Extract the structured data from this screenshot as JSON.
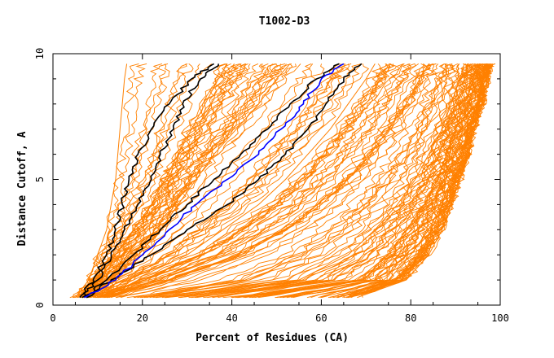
{
  "chart_data": {
    "type": "line",
    "title": "T1002-D3",
    "xlabel": "Percent of Residues (CA)",
    "ylabel": "Distance Cutoff, A",
    "xlim": [
      0,
      100
    ],
    "ylim": [
      0,
      10
    ],
    "x_ticks": [
      "0",
      "20",
      "40",
      "60",
      "80",
      "100"
    ],
    "y_ticks": [
      "0",
      "5",
      "10"
    ],
    "colors": {
      "bundle": "#ff8000",
      "highlight_black": "#000000",
      "highlight_blue": "#0000ff",
      "axes": "#000000"
    },
    "y_levels": [
      0.3,
      1,
      2,
      3,
      4,
      5,
      6,
      7,
      8,
      9,
      9.6
    ],
    "bundle_note_count_estimate": 150,
    "representative_series": [
      {
        "color": "orange",
        "x": [
          5,
          8,
          10,
          12,
          13,
          14,
          14.5,
          15,
          15.5,
          16,
          16.5
        ]
      },
      {
        "color": "orange",
        "x": [
          6,
          10,
          14,
          18,
          22,
          25,
          28,
          31,
          34,
          37,
          39
        ]
      },
      {
        "color": "orange",
        "x": [
          8,
          13,
          19,
          24,
          28,
          32,
          36,
          41,
          46,
          50,
          53
        ]
      },
      {
        "color": "orange",
        "x": [
          10,
          18,
          30,
          38,
          46,
          52,
          57,
          62,
          66,
          70,
          72
        ]
      },
      {
        "color": "orange",
        "x": [
          12,
          26,
          42,
          52,
          60,
          66,
          71,
          75,
          79,
          82,
          84
        ]
      },
      {
        "color": "orange",
        "x": [
          25,
          55,
          66,
          72,
          77,
          81,
          84,
          87,
          89,
          91,
          92
        ]
      },
      {
        "color": "orange",
        "x": [
          40,
          68,
          75,
          79,
          83,
          86,
          88,
          90,
          92,
          94,
          95
        ]
      },
      {
        "color": "orange",
        "x": [
          60,
          75,
          80,
          84,
          87,
          89,
          91,
          93,
          95,
          96,
          97
        ]
      },
      {
        "color": "orange",
        "x": [
          68,
          79,
          84,
          87,
          89,
          91,
          93,
          94,
          96,
          97,
          98
        ]
      }
    ],
    "highlight_series": [
      {
        "color": "black",
        "x": [
          6,
          9,
          12,
          14,
          15.5,
          17,
          19,
          22,
          26,
          31,
          36
        ]
      },
      {
        "color": "black",
        "x": [
          6.5,
          10,
          13,
          16,
          19,
          22,
          24,
          27,
          29,
          33,
          37
        ]
      },
      {
        "color": "black",
        "x": [
          7,
          12,
          18,
          24,
          30,
          36,
          42,
          48,
          53,
          59,
          64
        ]
      },
      {
        "color": "black",
        "x": [
          7.5,
          13,
          22,
          30,
          39,
          46,
          52,
          57,
          61,
          65,
          69
        ]
      },
      {
        "color": "blue",
        "x": [
          7,
          14,
          20,
          26,
          32,
          39,
          46,
          51,
          56,
          60,
          65
        ]
      }
    ]
  }
}
